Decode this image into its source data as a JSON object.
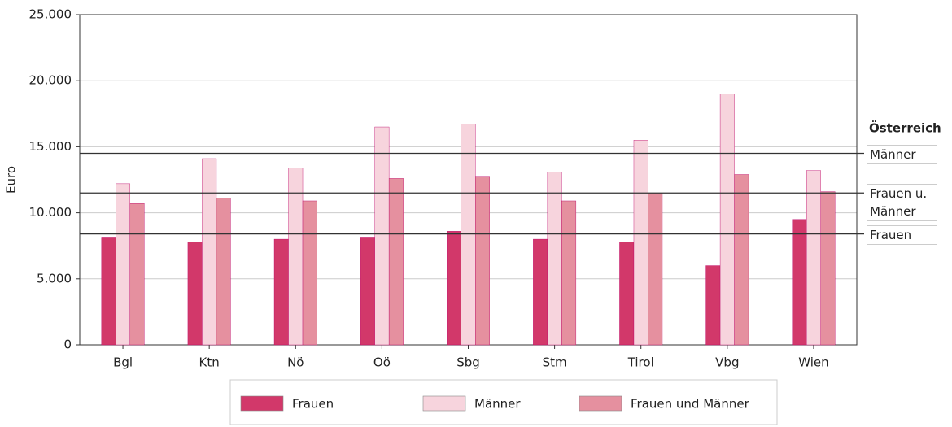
{
  "chart_data": {
    "type": "bar",
    "y_label": "Euro",
    "categories": [
      "Bgl",
      "Ktn",
      "Nö",
      "Oö",
      "Sbg",
      "Stm",
      "Tirol",
      "Vbg",
      "Wien"
    ],
    "series": [
      {
        "name": "Frauen",
        "color": "#d2386a",
        "values": [
          8100,
          7800,
          8000,
          8100,
          8600,
          8000,
          7800,
          6000,
          9500
        ]
      },
      {
        "name": "Männer",
        "color": "#f7d4dd",
        "values": [
          12200,
          14100,
          13400,
          16500,
          16700,
          13100,
          15500,
          19000,
          13200
        ]
      },
      {
        "name": "Frauen und Männer",
        "color": "#e5909f",
        "values": [
          10700,
          11100,
          10900,
          12600,
          12700,
          10900,
          11500,
          12900,
          11600
        ]
      }
    ],
    "ylim": [
      0,
      25000
    ],
    "yticks": [
      0,
      {
        "value": 5000,
        "label": "5.000"
      },
      {
        "value": 10000,
        "label": "10.000"
      },
      {
        "value": 15000,
        "label": "15.000"
      },
      {
        "value": 20000,
        "label": "20.000"
      },
      {
        "value": 25000,
        "label": "25.000"
      }
    ],
    "grid": true,
    "reference_title": "Österreich",
    "reference_lines": [
      {
        "label": "Männer",
        "value": 14500
      },
      {
        "label": "Frauen u. Männer",
        "value": 11500
      },
      {
        "label": "Frauen",
        "value": 8400
      }
    ]
  }
}
